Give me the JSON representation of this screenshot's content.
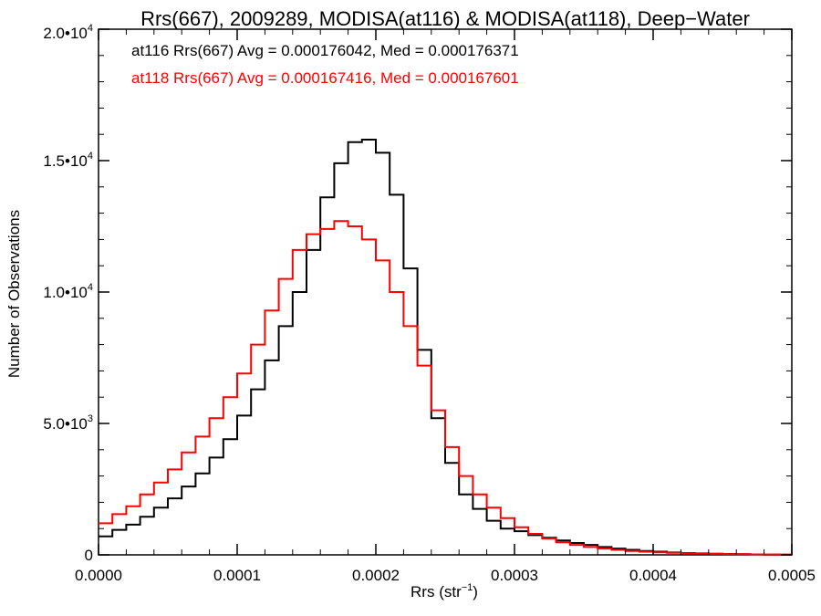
{
  "chart_data": {
    "type": "line",
    "title": "Rrs(667), 2009289, MODISA(at116) & MODISA(at118), Deep−Water",
    "xlabel": "Rrs (str",
    "xlabel_sup": "−1",
    "xlabel_close": ")",
    "ylabel": "Number of Observations",
    "xlim": [
      0,
      0.0005
    ],
    "ylim": [
      0,
      20000
    ],
    "x_ticks": [
      {
        "value": 0,
        "label": "0.0000"
      },
      {
        "value": 0.0001,
        "label": "0.0001"
      },
      {
        "value": 0.0002,
        "label": "0.0002"
      },
      {
        "value": 0.0003,
        "label": "0.0003"
      },
      {
        "value": 0.0004,
        "label": "0.0004"
      },
      {
        "value": 0.0005,
        "label": "0.0005"
      }
    ],
    "y_ticks": [
      {
        "value": 0,
        "label": "0",
        "exp": ""
      },
      {
        "value": 5000,
        "label": "5.0•10",
        "exp": "3"
      },
      {
        "value": 10000,
        "label": "1.0•10",
        "exp": "4"
      },
      {
        "value": 15000,
        "label": "1.5•10",
        "exp": "4"
      },
      {
        "value": 20000,
        "label": "2.0•10",
        "exp": "4"
      }
    ],
    "annotations": [
      {
        "text": "at116 Rrs(667) Avg = 0.000176042, Med = 0.000176371",
        "color": "#000000"
      },
      {
        "text": "at118 Rrs(667) Avg = 0.000167416, Med = 0.000167601",
        "color": "#ff0000"
      }
    ],
    "series": [
      {
        "color": "#000000",
        "x": [
          0,
          1e-05,
          2e-05,
          3e-05,
          4e-05,
          5e-05,
          6e-05,
          7e-05,
          8e-05,
          9e-05,
          0.0001,
          0.00011,
          0.00012,
          0.00013,
          0.00014,
          0.00015,
          0.00016,
          0.00017,
          0.00018,
          0.00019,
          0.0002,
          0.00021,
          0.00022,
          0.00023,
          0.00024,
          0.00025,
          0.00026,
          0.00027,
          0.00028,
          0.00029,
          0.0003,
          0.00031,
          0.00032,
          0.00033,
          0.00034,
          0.00035,
          0.00036,
          0.00037,
          0.00038,
          0.00039,
          0.0004,
          0.00041,
          0.00042,
          0.00043,
          0.00044,
          0.00045,
          0.00046,
          0.00047,
          0.00048,
          0.00049,
          0.0005
        ],
        "y": [
          700,
          950,
          1150,
          1450,
          1800,
          2150,
          2600,
          3100,
          3700,
          4400,
          5300,
          6300,
          7400,
          8700,
          10000,
          11600,
          13600,
          14900,
          15700,
          15800,
          15300,
          13700,
          10900,
          7800,
          5200,
          3500,
          2300,
          1750,
          1300,
          1000,
          900,
          750,
          650,
          550,
          450,
          380,
          300,
          240,
          190,
          150,
          120,
          90,
          70,
          55,
          45,
          35,
          25,
          18,
          12,
          8,
          5
        ]
      },
      {
        "color": "#ff0000",
        "x": [
          0,
          1e-05,
          2e-05,
          3e-05,
          4e-05,
          5e-05,
          6e-05,
          7e-05,
          8e-05,
          9e-05,
          0.0001,
          0.00011,
          0.00012,
          0.00013,
          0.00014,
          0.00015,
          0.00016,
          0.00017,
          0.00018,
          0.00019,
          0.0002,
          0.00021,
          0.00022,
          0.00023,
          0.00024,
          0.00025,
          0.00026,
          0.00027,
          0.00028,
          0.00029,
          0.0003,
          0.00031,
          0.00032,
          0.00033,
          0.00034,
          0.00035,
          0.00036,
          0.00037,
          0.00038,
          0.00039,
          0.0004,
          0.00041,
          0.00042,
          0.00043,
          0.00044,
          0.00045,
          0.00046,
          0.00047,
          0.00048,
          0.00049,
          0.0005
        ],
        "y": [
          1200,
          1550,
          1850,
          2300,
          2750,
          3250,
          3900,
          4500,
          5200,
          6000,
          6900,
          8000,
          9300,
          10500,
          11600,
          12200,
          12400,
          12700,
          12500,
          12000,
          11200,
          10000,
          8700,
          7200,
          5500,
          4100,
          3000,
          2300,
          1800,
          1400,
          1050,
          800,
          620,
          480,
          380,
          300,
          240,
          190,
          150,
          120,
          95,
          75,
          60,
          48,
          38,
          30,
          24,
          18,
          14,
          10,
          7
        ]
      }
    ]
  }
}
